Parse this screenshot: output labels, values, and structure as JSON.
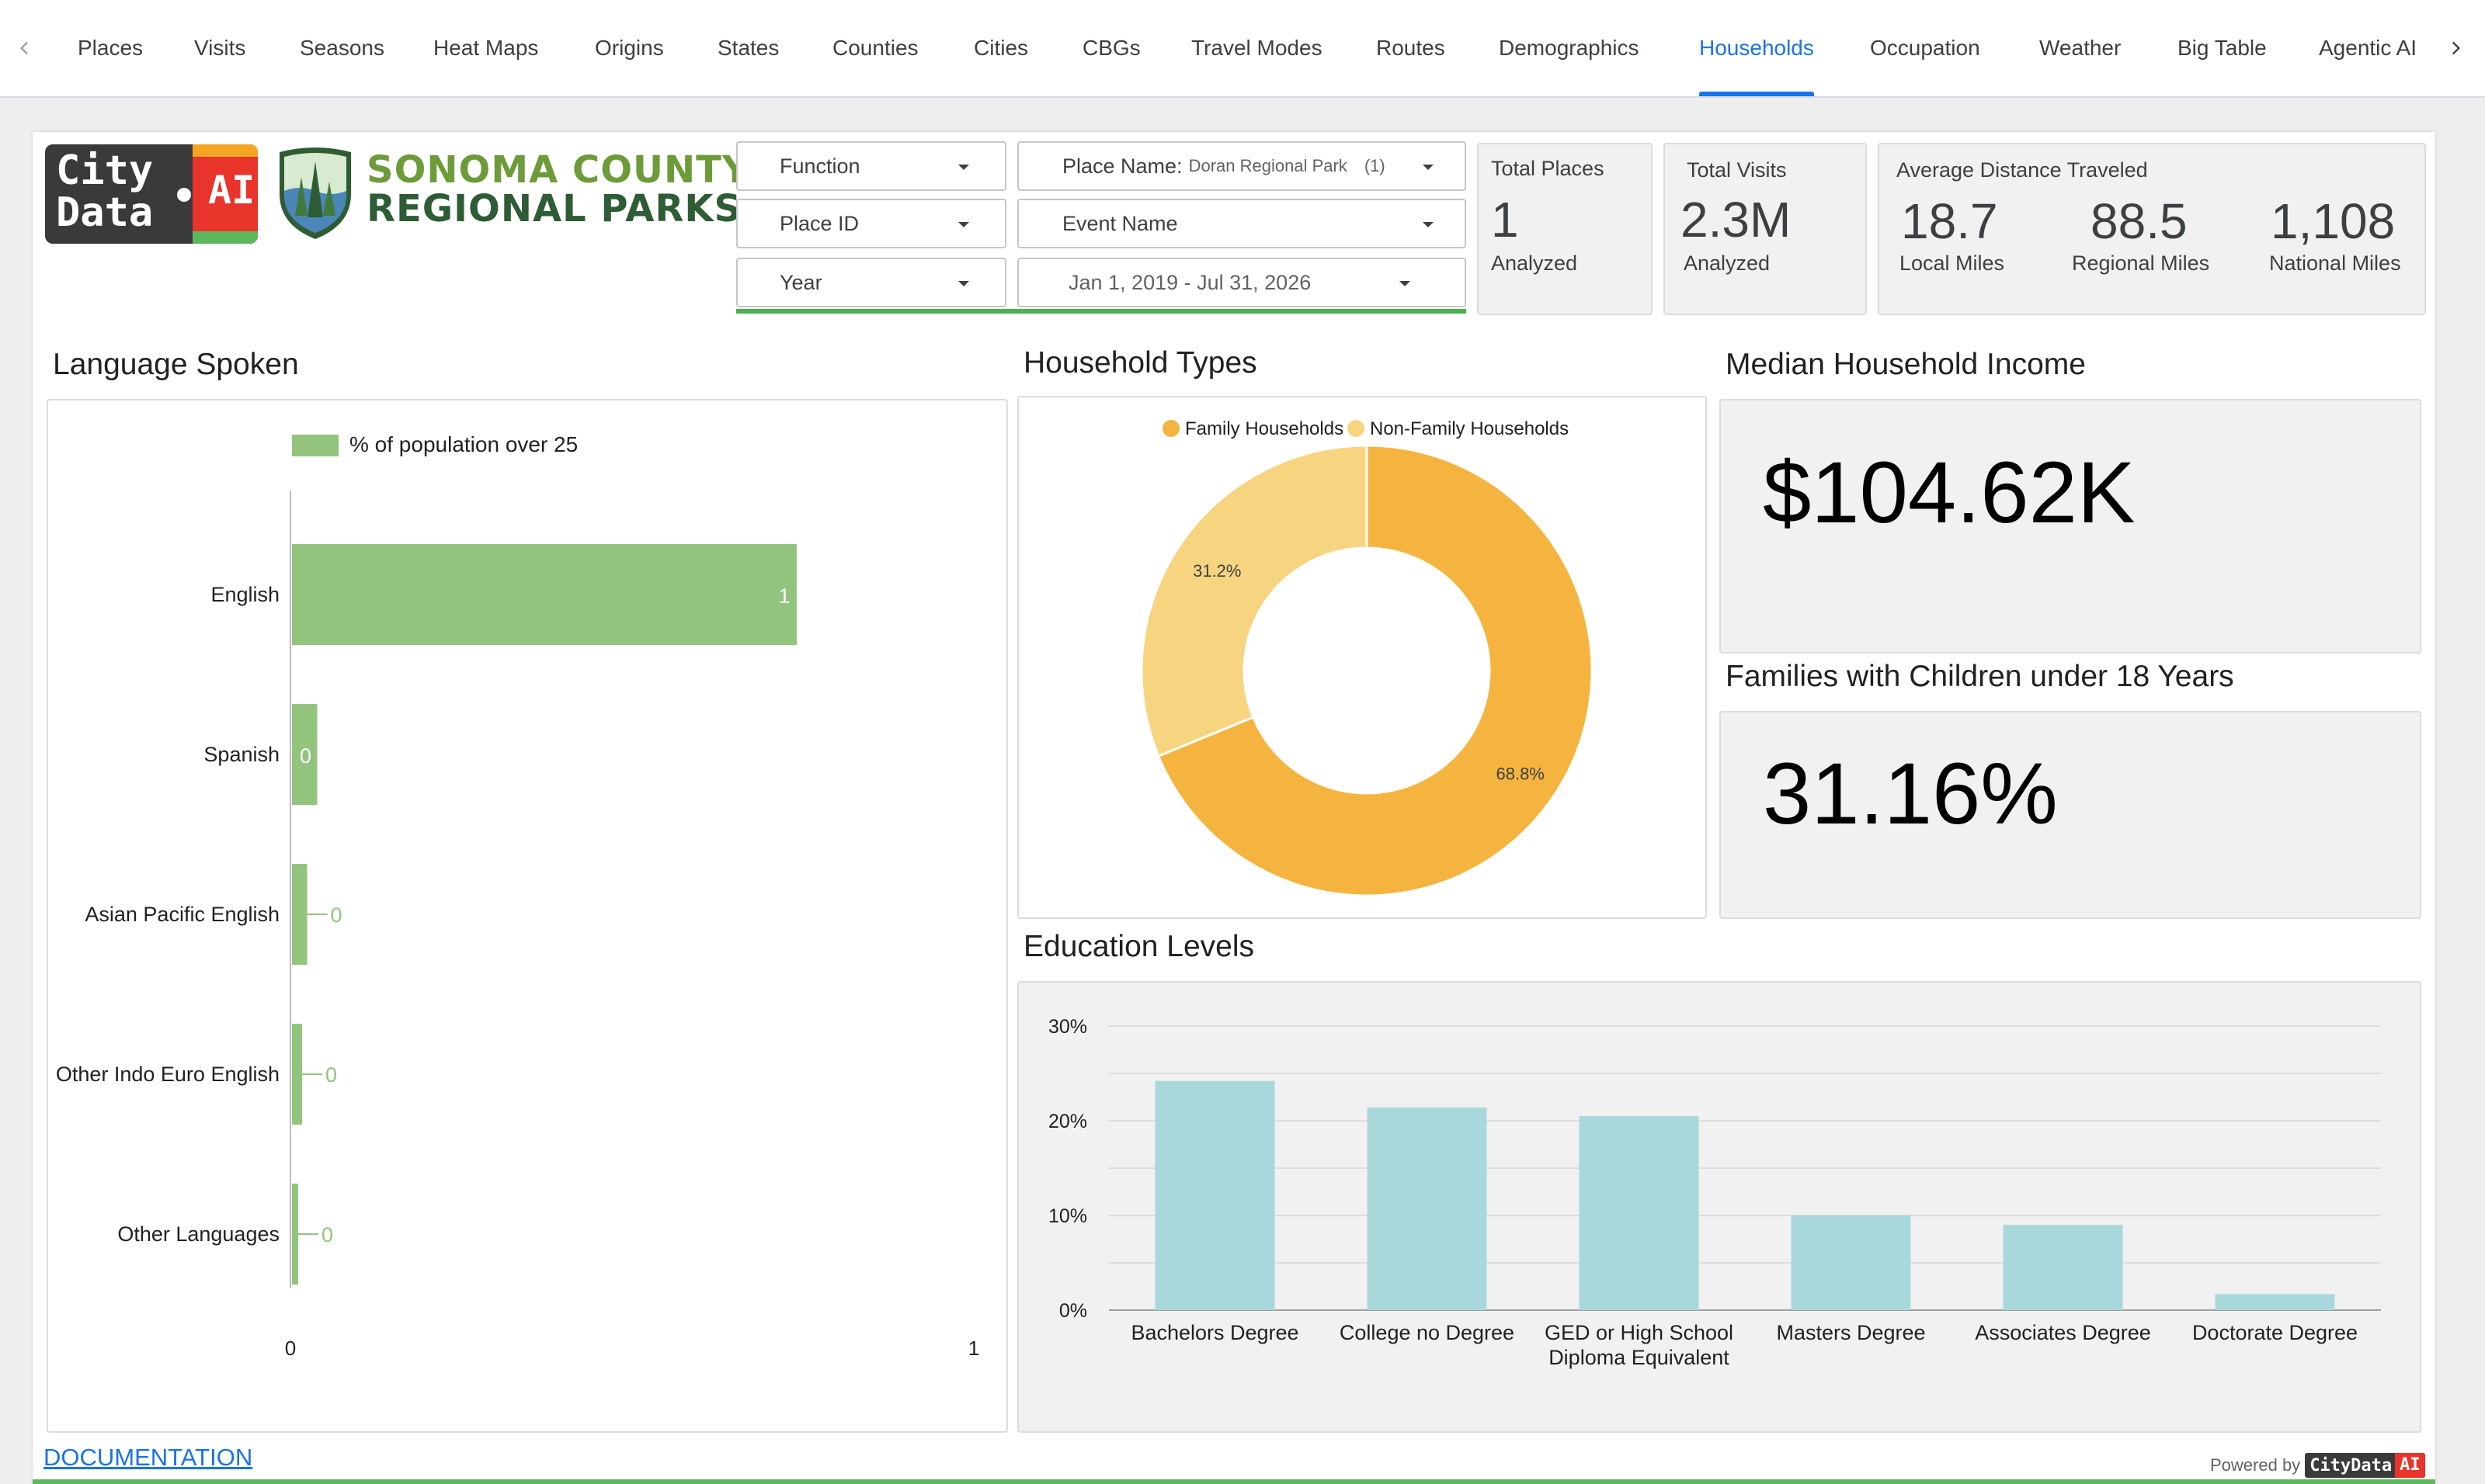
{
  "nav": {
    "tabs": [
      {
        "label": "Places"
      },
      {
        "label": "Visits"
      },
      {
        "label": "Seasons"
      },
      {
        "label": "Heat Maps"
      },
      {
        "label": "Origins"
      },
      {
        "label": "States"
      },
      {
        "label": "Counties"
      },
      {
        "label": "Cities"
      },
      {
        "label": "CBGs"
      },
      {
        "label": "Travel Modes"
      },
      {
        "label": "Routes"
      },
      {
        "label": "Demographics"
      },
      {
        "label": "Households"
      },
      {
        "label": "Occupation"
      },
      {
        "label": "Weather"
      },
      {
        "label": "Big Table"
      },
      {
        "label": "Agentic AI"
      }
    ],
    "active_tab": "Households"
  },
  "logos": {
    "citydata_line1": "City",
    "citydata_line2": "Data",
    "citydata_ai": "AI",
    "parks_line1": "SONOMA COUNTY",
    "parks_line2": "REGIONAL PARKS"
  },
  "filters": {
    "function": "Function",
    "place_id": "Place ID",
    "year": "Year",
    "place_name_label": "Place Name:",
    "place_name_value": "Doran Regional Park",
    "place_name_count": "(1)",
    "event_name": "Event Name",
    "date_range": "Jan 1, 2019 - Jul 31, 2026"
  },
  "scorecards": {
    "total_places": {
      "title": "Total Places",
      "value": "1",
      "sub": "Analyzed"
    },
    "total_visits": {
      "title": "Total Visits",
      "value": "2.3M",
      "sub": "Analyzed"
    },
    "avg_distance": {
      "title": "Average Distance Traveled",
      "local_value": "18.7",
      "local_label": "Local Miles",
      "regional_value": "88.5",
      "regional_label": "Regional Miles",
      "national_value": "1,108",
      "national_label": "National Miles"
    }
  },
  "sections": {
    "language_title": "Language Spoken",
    "household_types_title": "Household Types",
    "median_income_title": "Median Household Income",
    "median_income_value": "$104.62K",
    "families_children_title": "Families with Children under 18 Years",
    "families_children_value": "31.16%",
    "education_title": "Education Levels"
  },
  "footer": {
    "documentation": "DOCUMENTATION",
    "powered_by": "Powered by",
    "powered_logo_a": "CityData",
    "powered_logo_b": "AI"
  },
  "colors": {
    "accent_blue": "#1a73e8",
    "language_bar": "#93c47d",
    "family": "#f4b43f",
    "non_family": "#f7d580",
    "education_bar": "#a8d8dc"
  },
  "chart_data": [
    {
      "type": "bar",
      "orientation": "horizontal",
      "categories": [
        "English",
        "Spanish",
        "Asian Pacific English",
        "Other Indo Euro English",
        "Other Languages"
      ],
      "series": [
        {
          "name": "% of population over 25",
          "values": [
            1,
            0.05,
            0.03,
            0.02,
            0.005
          ]
        }
      ],
      "data_labels": [
        "1",
        "0",
        "0",
        "0",
        "0"
      ],
      "xlim": [
        0,
        1
      ],
      "x_ticks": [
        "0",
        "1"
      ],
      "legend": "top"
    },
    {
      "type": "pie",
      "donut": true,
      "categories": [
        "Family Households",
        "Non-Family Households"
      ],
      "values": [
        68.8,
        31.2
      ],
      "data_labels": [
        "68.8%",
        "31.2%"
      ],
      "legend": "top"
    },
    {
      "type": "bar",
      "categories": [
        "Bachelors Degree",
        "College no Degree",
        "GED or High School Diploma Equivalent",
        "Masters Degree",
        "Associates Degree",
        "Doctorate Degree"
      ],
      "category_lines": [
        [
          "Bachelors Degree"
        ],
        [
          "College no Degree"
        ],
        [
          "GED or High School",
          "Diploma Equivalent"
        ],
        [
          "Masters Degree"
        ],
        [
          "Associates Degree"
        ],
        [
          "Doctorate Degree"
        ]
      ],
      "values": [
        24.2,
        21.4,
        20.5,
        10.0,
        9.0,
        1.7
      ],
      "ylim": [
        0,
        30
      ],
      "y_ticks": [
        "0%",
        "10%",
        "20%",
        "30%"
      ],
      "grid": true
    }
  ]
}
